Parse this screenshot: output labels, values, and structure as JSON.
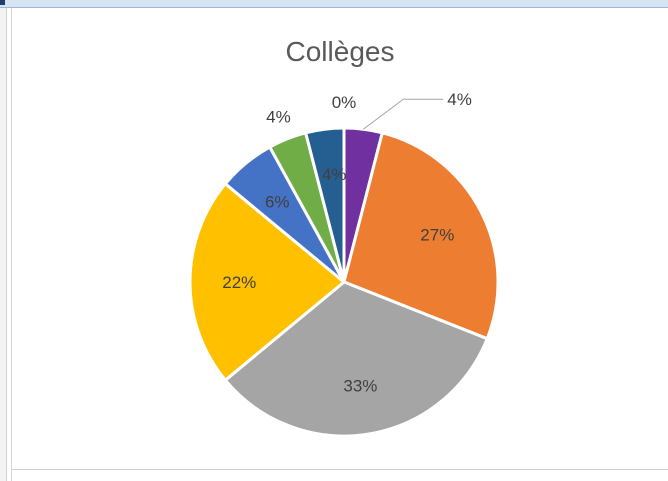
{
  "chart_data": {
    "type": "pie",
    "title": "Collèges",
    "slices": [
      {
        "label": "4%",
        "value": 4,
        "color": "#7030a0"
      },
      {
        "label": "27%",
        "value": 27,
        "color": "#ed7d31"
      },
      {
        "label": "33%",
        "value": 33,
        "color": "#a5a5a5"
      },
      {
        "label": "22%",
        "value": 22,
        "color": "#ffc000"
      },
      {
        "label": "6%",
        "value": 6,
        "color": "#4472c4"
      },
      {
        "label": "4%",
        "value": 4,
        "color": "#70ad47"
      },
      {
        "label": "4%",
        "value": 4,
        "color": "#255e91"
      },
      {
        "label": "0%",
        "value": 0,
        "color": "#9e480e"
      }
    ]
  }
}
